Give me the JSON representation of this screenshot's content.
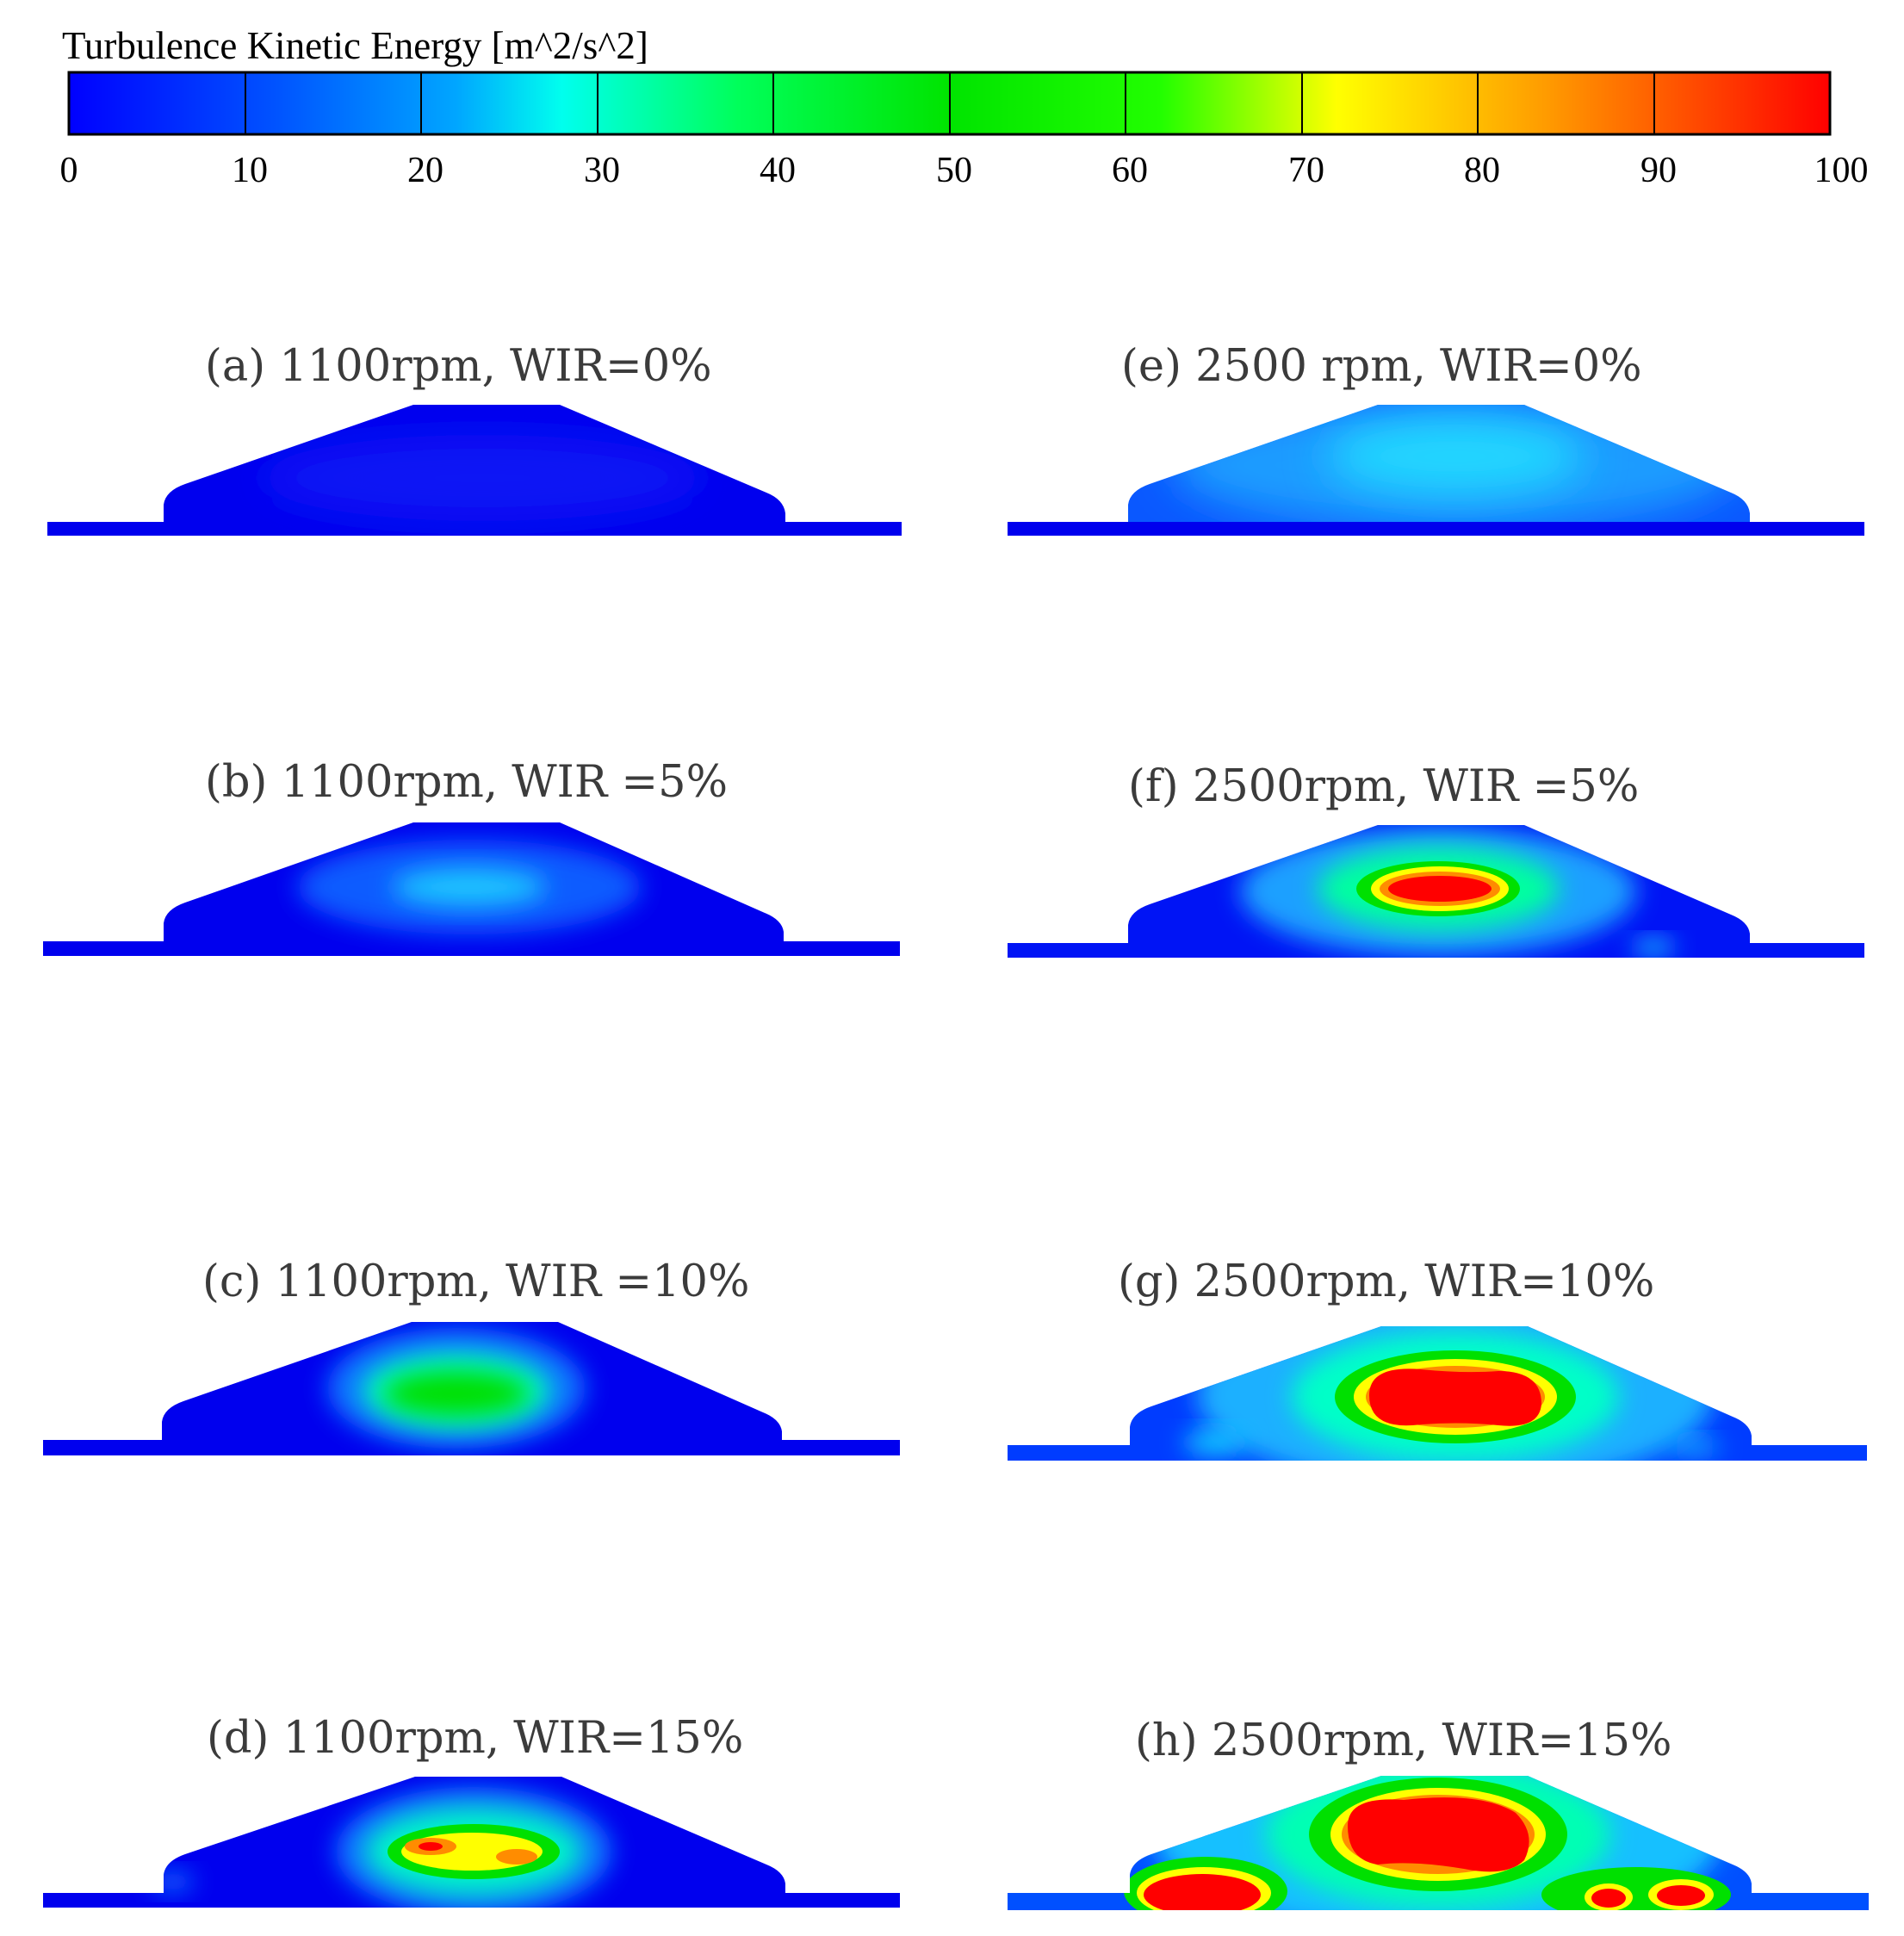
{
  "colorbar": {
    "title": "Turbulence Kinetic Energy [m^2/s^2]",
    "min": 0,
    "max": 100,
    "ticks": [
      "0",
      "10",
      "20",
      "30",
      "40",
      "50",
      "60",
      "70",
      "80",
      "90",
      "100"
    ],
    "colors": [
      "#0000ff",
      "#00a6ff",
      "#00ffee",
      "#00ff5a",
      "#00e000",
      "#ffff00",
      "#ff9a00",
      "#ff0000"
    ]
  },
  "panels": [
    {
      "id": "a",
      "label": "(a) 1100rpm,   WIR=0%",
      "rpm": 1100,
      "wir_percent": 0,
      "field": "uniform low (blue)"
    },
    {
      "id": "b",
      "label": "(b) 1100rpm,   WIR =5%",
      "rpm": 1100,
      "wir_percent": 5,
      "field": "low with faint cyan core"
    },
    {
      "id": "c",
      "label": "(c) 1100rpm,   WIR =10%",
      "rpm": 1100,
      "wir_percent": 10,
      "field": "green core"
    },
    {
      "id": "d",
      "label": "(d) 1100rpm,   WIR=15%",
      "rpm": 1100,
      "wir_percent": 15,
      "field": "yellow-orange core"
    },
    {
      "id": "e",
      "label": "(e) 2500 rpm,   WIR=0%",
      "rpm": 2500,
      "wir_percent": 0,
      "field": "light blue / cyan"
    },
    {
      "id": "f",
      "label": "(f) 2500rpm,   WIR =5%",
      "rpm": 2500,
      "wir_percent": 5,
      "field": "red core"
    },
    {
      "id": "g",
      "label": "(g) 2500rpm,   WIR=10%",
      "rpm": 2500,
      "wir_percent": 10,
      "field": "large red core"
    },
    {
      "id": "h",
      "label": "(h) 2500rpm,   WIR=15%",
      "rpm": 2500,
      "wir_percent": 15,
      "field": "multiple red cores"
    }
  ]
}
